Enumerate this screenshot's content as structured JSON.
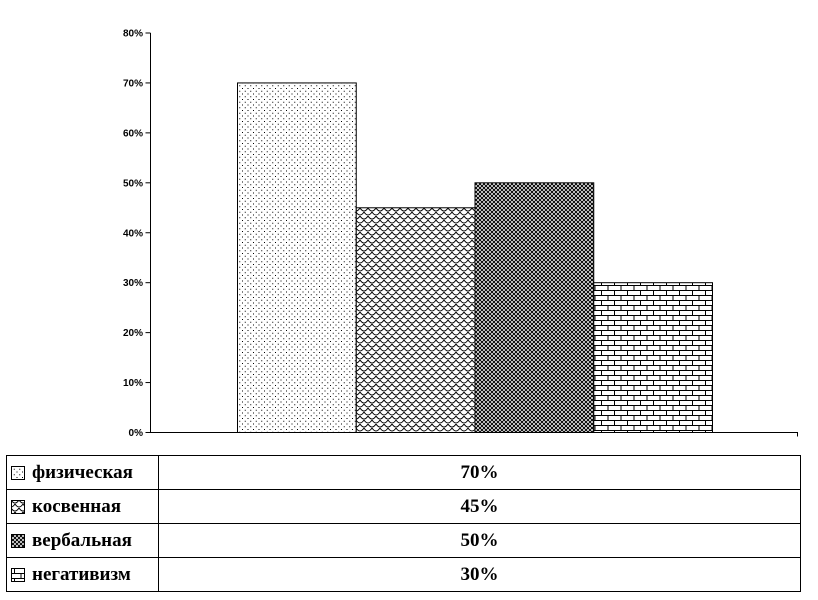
{
  "chart_data": {
    "type": "bar",
    "title": "",
    "categories": [
      "физическая",
      "косвенная",
      "вербальная",
      "негативизм"
    ],
    "values": [
      70,
      45,
      50,
      30
    ],
    "value_labels": [
      "70%",
      "45%",
      "50%",
      "30%"
    ],
    "bar_patterns": [
      "dots",
      "scale",
      "dense",
      "brick"
    ],
    "xlabel": "",
    "ylabel": "",
    "ylim": [
      0,
      80
    ],
    "ytick_step": 10,
    "ytick_labels": [
      "80%",
      "70%",
      "60%",
      "50%",
      "40%",
      "30%",
      "20%",
      "10%",
      "0%"
    ],
    "grid": "off",
    "legend_position": "bottom-table"
  },
  "legend_table": {
    "rows": [
      {
        "label": "физическая",
        "value": "70%",
        "pattern": "dots"
      },
      {
        "label": "косвенная",
        "value": "45%",
        "pattern": "scale"
      },
      {
        "label": "вербальная",
        "value": "50%",
        "pattern": "dense"
      },
      {
        "label": "негативизм",
        "value": "30%",
        "pattern": "brick"
      }
    ]
  },
  "colors": {
    "ink": "#000000",
    "background": "#ffffff"
  }
}
